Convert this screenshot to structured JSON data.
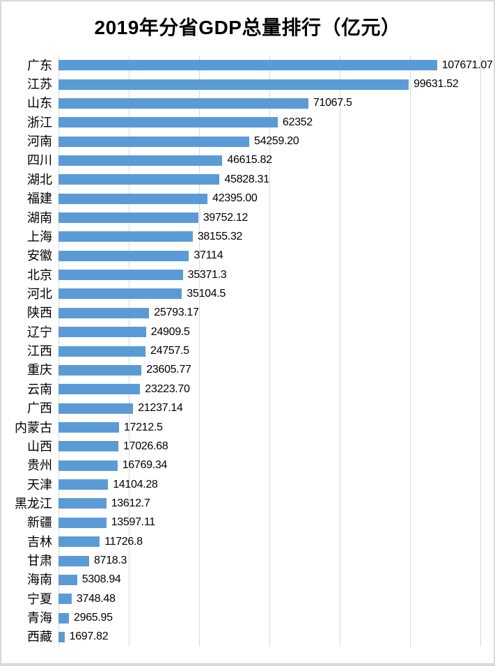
{
  "title": "2019年分省GDP总量排行（亿元）",
  "colors": {
    "bar": "#5B9BD5",
    "gridline": "#D9D9D9",
    "frame_border": "#D8D8D8",
    "text": "#000000",
    "background": "#FFFFFF"
  },
  "chart_data": {
    "type": "bar",
    "orientation": "horizontal",
    "title": "2019年分省GDP总量排行（亿元）",
    "unit": "亿元",
    "sort": "descending",
    "legend": "none",
    "grid": "vertical-gridlines-only",
    "value_label_position": "outside-end",
    "xlim": [
      0,
      120000
    ],
    "x_major_unit": 20000,
    "categories": [
      "广东",
      "江苏",
      "山东",
      "浙江",
      "河南",
      "四川",
      "湖北",
      "福建",
      "湖南",
      "上海",
      "安徽",
      "北京",
      "河北",
      "陕西",
      "辽宁",
      "江西",
      "重庆",
      "云南",
      "广西",
      "内蒙古",
      "山西",
      "贵州",
      "天津",
      "黑龙江",
      "新疆",
      "吉林",
      "甘肃",
      "海南",
      "宁夏",
      "青海",
      "西藏"
    ],
    "values": [
      107671.07,
      99631.52,
      71067.5,
      62352,
      54259.2,
      46615.82,
      45828.31,
      42395.0,
      39752.12,
      38155.32,
      37114,
      35371.3,
      35104.5,
      25793.17,
      24909.5,
      24757.5,
      23605.77,
      23223.7,
      21237.14,
      17212.5,
      17026.68,
      16769.34,
      14104.28,
      13612.7,
      13597.11,
      11726.8,
      8718.3,
      5308.94,
      3748.48,
      2965.95,
      1697.82
    ],
    "value_labels": [
      "107671.07",
      "99631.52",
      "71067.5",
      "62352",
      "54259.20",
      "46615.82",
      "45828.31",
      "42395.00",
      "39752.12",
      "38155.32",
      "37114",
      "35371.3",
      "35104.5",
      "25793.17",
      "24909.5",
      "24757.5",
      "23605.77",
      "23223.70",
      "21237.14",
      "17212.5",
      "17026.68",
      "16769.34",
      "14104.28",
      "13612.7",
      "13597.11",
      "11726.8",
      "8718.3",
      "5308.94",
      "3748.48",
      "2965.95",
      "1697.82"
    ]
  }
}
